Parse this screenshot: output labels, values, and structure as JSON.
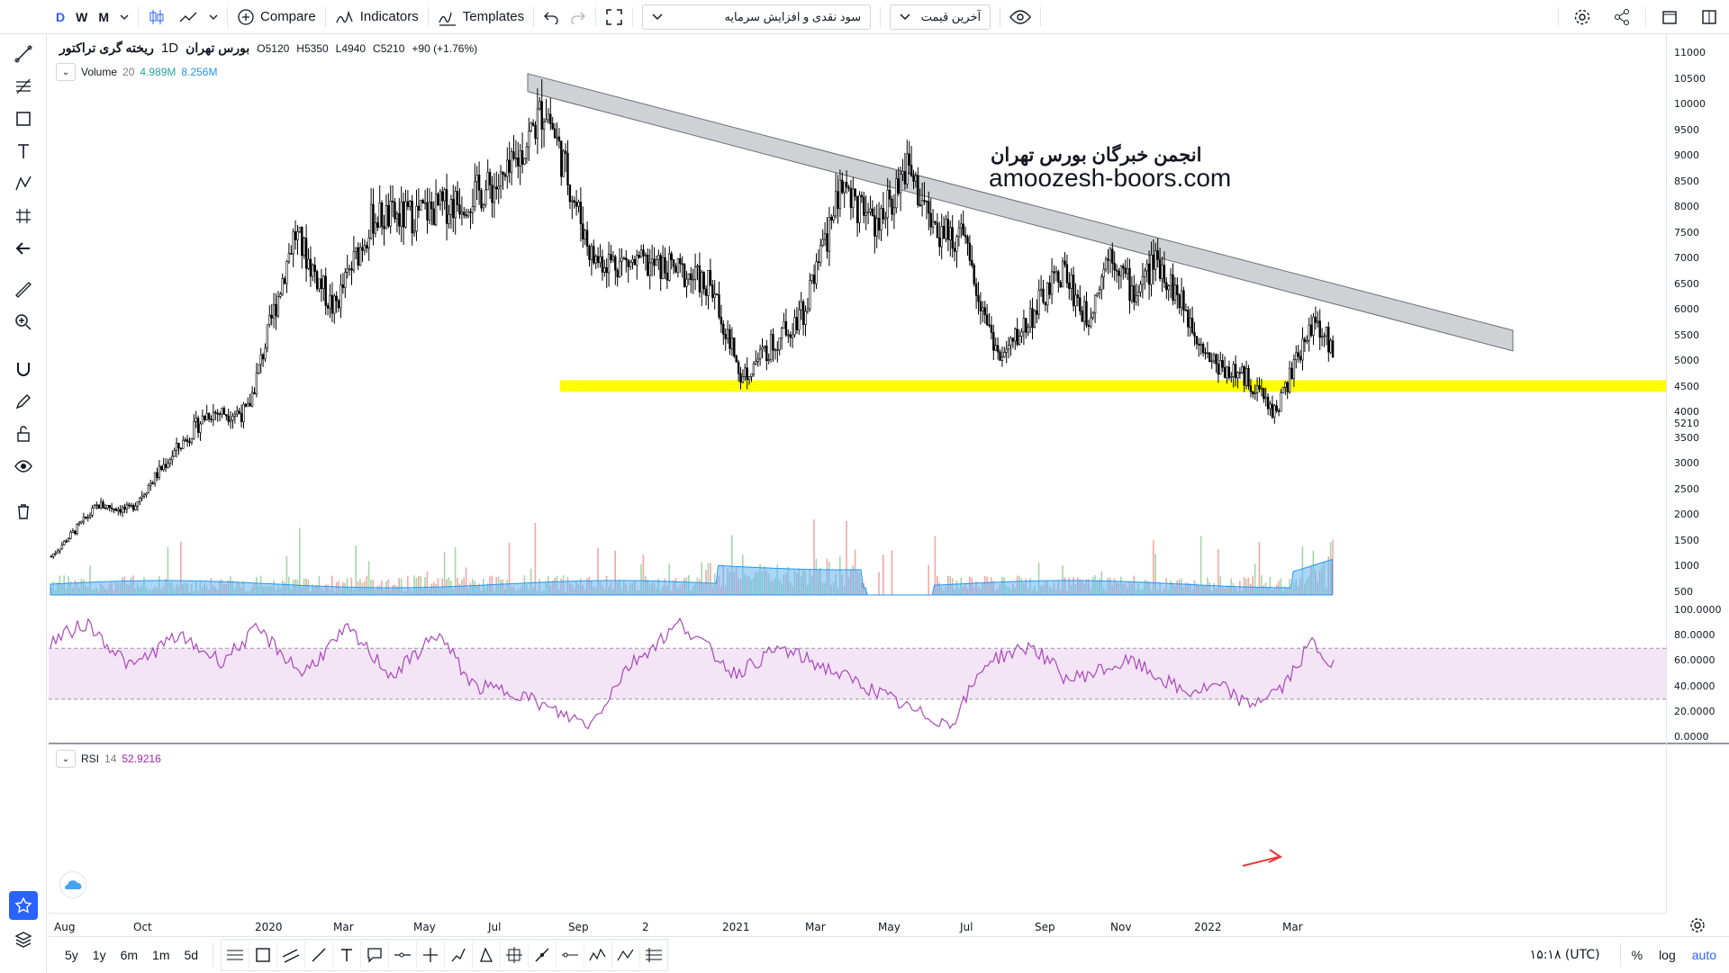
{
  "toolbar": {
    "intervals": [
      "D",
      "W",
      "M"
    ],
    "compare_label": "Compare",
    "indicators_label": "Indicators",
    "templates_label": "Templates",
    "template_select": "سود نقدی و افزایش سرمایه",
    "price_type_select": "آخرین قیمت"
  },
  "legend": {
    "symbol": "ریخته گری تراکتور",
    "interval": "1D",
    "exchange": "بورس تهران",
    "open": "O5120",
    "high": "H5350",
    "low": "L4940",
    "close": "C5210",
    "change": "+90 (+1.76%)"
  },
  "volume": {
    "label": "Volume",
    "length": "20",
    "value1": "4.989M",
    "value2": "8.256M"
  },
  "rsi": {
    "label": "RSI",
    "length": "14",
    "value": "52.9216"
  },
  "watermark": {
    "line1": "انجمن خبرگان بورس تهران",
    "line2": "amoozesh-boors.com"
  },
  "price_scale": {
    "ticks": [
      "11000",
      "10500",
      "10000",
      "9500",
      "9000",
      "8500",
      "8000",
      "7500",
      "7000",
      "6500",
      "6000",
      "5500",
      "5000",
      "4500",
      "4000",
      "3500",
      "3000",
      "2500",
      "2000",
      "1500",
      "1000",
      "500"
    ],
    "last_price": "5210"
  },
  "rsi_scale": {
    "ticks": [
      "100.0000",
      "80.0000",
      "60.0000",
      "40.0000",
      "20.0000",
      "0.0000"
    ]
  },
  "time_axis": {
    "labels": [
      "Aug",
      "Oct",
      "2020",
      "Mar",
      "May",
      "Jul",
      "Sep",
      "2",
      "2021",
      "Mar",
      "May",
      "Jul",
      "Sep",
      "Nov",
      "2022",
      "Mar"
    ]
  },
  "bottom": {
    "ranges": [
      "5y",
      "1y",
      "6m",
      "1m",
      "5d"
    ],
    "clock": "۱۵:۱۸ (UTC)",
    "percent": "%",
    "log": "log",
    "auto": "auto"
  },
  "colors": {
    "accent": "#2962ff",
    "up_volume": "#26a69a",
    "down_volume": "#ef5350",
    "rsi_line": "#9c27b0",
    "rsi_band": "#f3e5f5",
    "support_zone": "#ffff00",
    "trendline_channel": "#b2b5be",
    "volume_ma": "#2196f3"
  },
  "chart_data": {
    "type": "candlestick",
    "price_axis": {
      "min": 500,
      "max": 11000
    },
    "support_zone": {
      "from": 4550,
      "to": 4700
    },
    "trend_channel": {
      "start_price_top": 10600,
      "start_price_bottom": 10250,
      "end_price_top": 5600,
      "end_price_bottom": 5200
    },
    "close_path": [
      [
        "Aug",
        1200
      ],
      [
        "Sep",
        2200
      ],
      [
        "Oct",
        2100
      ],
      [
        "Nov",
        3100
      ],
      [
        "Dec",
        4000
      ],
      [
        "2020",
        4000
      ],
      [
        "Feb",
        7500
      ],
      [
        "Mar",
        6000
      ],
      [
        "Apr",
        7800
      ],
      [
        "May",
        7800
      ],
      [
        "Jun",
        8000
      ],
      [
        "Jul",
        8500
      ],
      [
        "Jul-end",
        10000
      ],
      [
        "Aug",
        7000
      ],
      [
        "Sep",
        6800
      ],
      [
        "Oct",
        6500
      ],
      [
        "Nov",
        4700
      ],
      [
        "Dec",
        6000
      ],
      [
        "2021",
        8500
      ],
      [
        "Feb",
        7500
      ],
      [
        "Mar",
        8800
      ],
      [
        "Apr",
        7500
      ],
      [
        "May",
        7400
      ],
      [
        "Jun",
        5000
      ],
      [
        "Jul",
        6800
      ],
      [
        "Aug",
        5800
      ],
      [
        "Sep",
        7200
      ],
      [
        "Oct",
        6300
      ],
      [
        "Nov",
        7000
      ],
      [
        "Dec",
        5000
      ],
      [
        "2022",
        4600
      ],
      [
        "Feb",
        4000
      ],
      [
        "Mar",
        5800
      ],
      [
        "Apr",
        5210
      ]
    ],
    "rsi_levels": {
      "upper": 70,
      "lower": 30
    }
  }
}
